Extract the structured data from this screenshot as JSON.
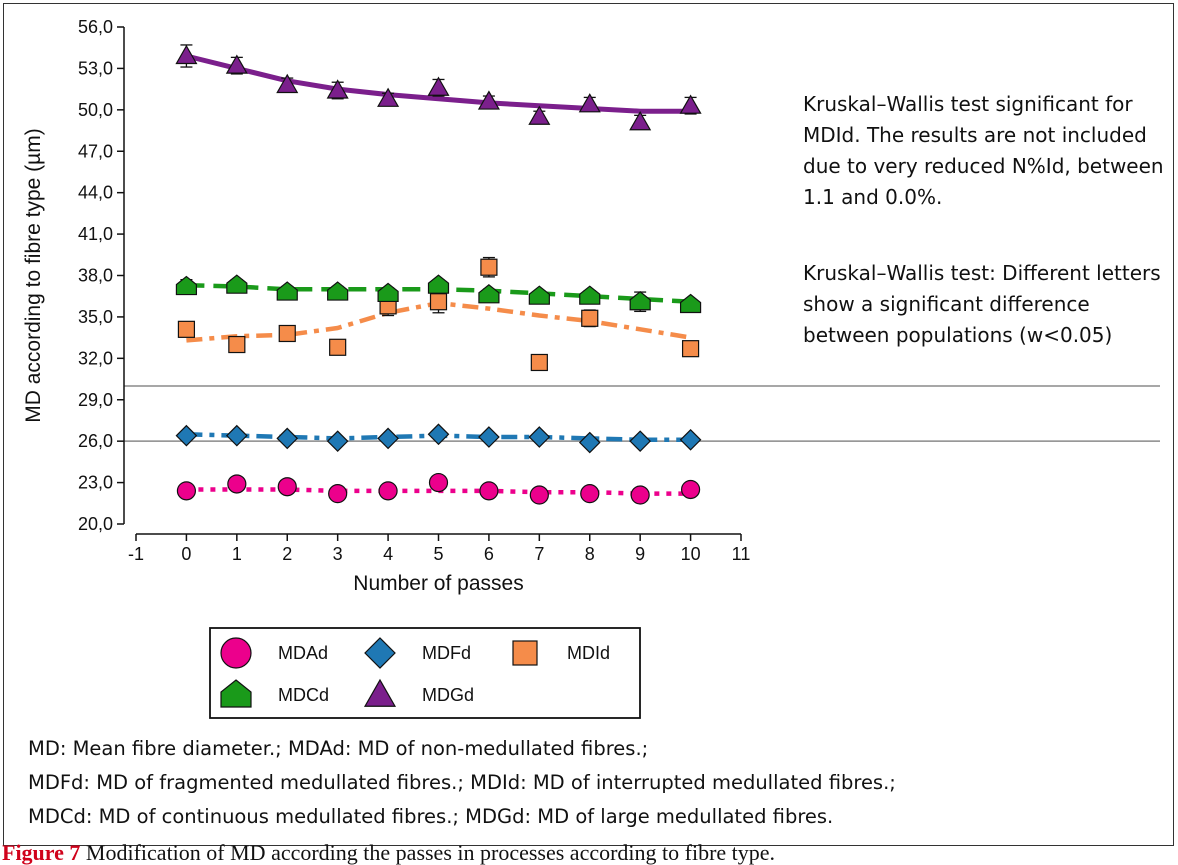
{
  "chart_data": {
    "type": "line",
    "xlabel": "Number of passes",
    "ylabel": "MD according to fibre type (µm)",
    "xlim": [
      -1,
      11
    ],
    "ylim": [
      20,
      56
    ],
    "x_ticks": [
      "-1",
      "0",
      "1",
      "2",
      "3",
      "4",
      "5",
      "6",
      "7",
      "8",
      "9",
      "10",
      "11"
    ],
    "y_ticks": [
      "20,0",
      "23,0",
      "26,0",
      "29,0",
      "32,0",
      "35,0",
      "38,0",
      "41,0",
      "44,0",
      "47,0",
      "50,0",
      "53,0",
      "56,0"
    ],
    "reference_lines": [
      26.0,
      30.0
    ],
    "grid": false,
    "legend_position": "bottom",
    "x": [
      0,
      1,
      2,
      3,
      4,
      5,
      6,
      7,
      8,
      9,
      10
    ],
    "series": [
      {
        "name": "MDAd",
        "marker": "circle",
        "color": "#ec008c",
        "line_style": "dotted",
        "values": [
          22.4,
          22.9,
          22.7,
          22.2,
          22.4,
          23.0,
          22.4,
          22.1,
          22.2,
          22.1,
          22.5
        ],
        "errors": [
          0.3,
          0.3,
          0.3,
          0.3,
          0.3,
          0.3,
          0.3,
          0.3,
          0.3,
          0.3,
          0.3
        ],
        "trend": [
          22.5,
          22.5,
          22.5,
          22.4,
          22.4,
          22.4,
          22.4,
          22.3,
          22.3,
          22.2,
          22.2
        ]
      },
      {
        "name": "MDFd",
        "marker": "diamond",
        "color": "#1f78b4",
        "line_style": "dash-dot",
        "values": [
          26.4,
          26.4,
          26.2,
          26.0,
          26.2,
          26.5,
          26.3,
          26.3,
          25.9,
          26.0,
          26.1
        ],
        "errors": [
          0.2,
          0.2,
          0.2,
          0.2,
          0.2,
          0.2,
          0.2,
          0.2,
          0.2,
          0.2,
          0.2
        ],
        "trend": [
          26.5,
          26.4,
          26.3,
          26.2,
          26.3,
          26.4,
          26.3,
          26.3,
          26.2,
          26.1,
          26.1
        ]
      },
      {
        "name": "MDId",
        "marker": "square",
        "color": "#f58c4a",
        "line_style": "dash-dot",
        "values": [
          34.1,
          33.0,
          33.8,
          32.8,
          35.8,
          36.1,
          38.6,
          31.7,
          34.9,
          null,
          32.7
        ],
        "errors": [
          0.3,
          0.4,
          0.4,
          0.5,
          0.7,
          0.8,
          0.7,
          0.3,
          0.6,
          null,
          0.4
        ],
        "trend": [
          33.3,
          33.6,
          33.7,
          34.2,
          35.3,
          36.0,
          35.6,
          35.1,
          34.7,
          34.1,
          33.5
        ]
      },
      {
        "name": "MDCd",
        "marker": "pentagon",
        "color": "#1a9a1a",
        "line_style": "dashed",
        "values": [
          37.2,
          37.3,
          36.8,
          36.8,
          36.7,
          37.3,
          36.6,
          36.5,
          36.5,
          36.1,
          35.9
        ],
        "errors": [
          0.5,
          0.4,
          0.4,
          0.4,
          0.4,
          0.4,
          0.4,
          0.3,
          0.4,
          0.7,
          0.3
        ],
        "trend": [
          37.3,
          37.2,
          37.0,
          37.0,
          37.0,
          37.0,
          36.9,
          36.7,
          36.5,
          36.3,
          36.1
        ]
      },
      {
        "name": "MDGd",
        "marker": "triangle",
        "color": "#7b1f8c",
        "line_style": "solid",
        "values": [
          53.9,
          53.2,
          51.8,
          51.4,
          50.8,
          51.6,
          50.6,
          49.5,
          50.4,
          49.1,
          50.3
        ],
        "errors": [
          0.8,
          0.6,
          0.5,
          0.6,
          0.4,
          0.6,
          0.4,
          0.4,
          0.5,
          0.5,
          0.6
        ],
        "trend": [
          53.9,
          53.0,
          52.1,
          51.5,
          51.1,
          50.8,
          50.5,
          50.3,
          50.1,
          49.9,
          49.9
        ]
      }
    ]
  },
  "notes": {
    "kruskal_1": "Kruskal–Wallis test significant for MDId. The results are not included due to very reduced N%Id, between 1.1 and 0.0%.",
    "kruskal_2": "Kruskal–Wallis test: Different letters show a significant difference between populations (w<0.05)"
  },
  "footnotes": {
    "line1": "MD: Mean fibre diameter.; MDAd: MD of non-medullated fibres.;",
    "line2": "MDFd: MD of fragmented medullated fibres.; MDId: MD of interrupted medullated fibres.;",
    "line3": "MDCd: MD of continuous medullated fibres.; MDGd: MD of large medullated fibres."
  },
  "caption": {
    "label": "Figure 7",
    "text": " Modification of MD according the passes in processes according to fibre type."
  }
}
